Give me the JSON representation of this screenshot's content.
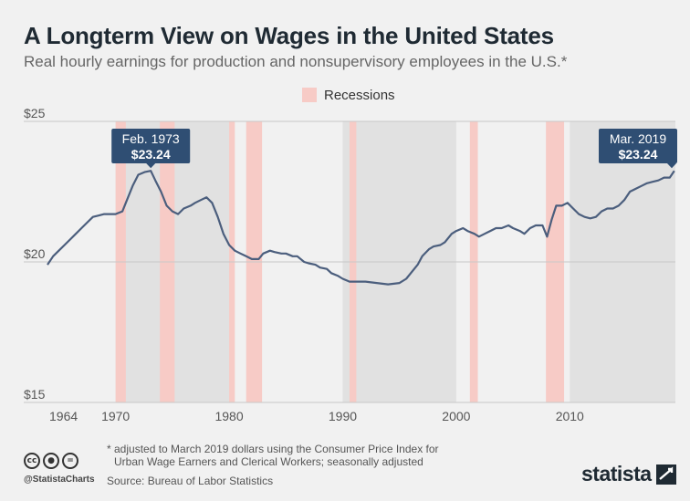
{
  "title": "A Longterm View on Wages in the United States",
  "subtitle": "Real hourly earnings for production and nonsupervisory employees in the U.S.*",
  "legend": {
    "recessions_label": "Recessions"
  },
  "footnote": {
    "line1": "* adjusted to March 2019 dollars using the Consumer Price Index for",
    "line2": "Urban Wage Earners and Clerical Workers; seasonally adjusted"
  },
  "source": "Source: Bureau of Labor Statistics",
  "handle": "@StatistaCharts",
  "brand": "statista",
  "icons": [
    "creative-commons-icon",
    "attribution-icon",
    "no-derivatives-icon"
  ],
  "colors": {
    "line": "#4b5e7d",
    "recession": "#f7cbc6",
    "decade_band": "#e1e1e1",
    "callout": "#2f4e73",
    "background": "#f1f1f1"
  },
  "chart_data": {
    "type": "line",
    "x_unit": "year",
    "xlim": [
      1964,
      2019.3
    ],
    "ylim": [
      15,
      25
    ],
    "y_ticks": [
      {
        "value": 25,
        "label": "$25"
      },
      {
        "value": 20,
        "label": "$20"
      },
      {
        "value": 15,
        "label": "$15"
      }
    ],
    "x_ticks": [
      {
        "value": 1964,
        "label": "1964"
      },
      {
        "value": 1970,
        "label": "1970"
      },
      {
        "value": 1980,
        "label": "1980"
      },
      {
        "value": 1990,
        "label": "1990"
      },
      {
        "value": 2000,
        "label": "2000"
      },
      {
        "value": 2010,
        "label": "2010"
      }
    ],
    "decade_bands": [
      [
        1970,
        1980
      ],
      [
        1990,
        2000
      ],
      [
        2010,
        2019.3
      ]
    ],
    "recessions": [
      [
        1970.0,
        1970.9
      ],
      [
        1973.9,
        1975.2
      ],
      [
        1980.0,
        1980.5
      ],
      [
        1981.5,
        1982.9
      ],
      [
        1990.6,
        1991.2
      ],
      [
        2001.2,
        2001.9
      ],
      [
        2007.9,
        2009.5
      ]
    ],
    "series": [
      {
        "points": [
          [
            1964.0,
            19.9
          ],
          [
            1964.5,
            20.2
          ],
          [
            1965.0,
            20.4
          ],
          [
            1965.5,
            20.6
          ],
          [
            1966.0,
            20.8
          ],
          [
            1966.5,
            21.0
          ],
          [
            1967.0,
            21.2
          ],
          [
            1967.5,
            21.4
          ],
          [
            1968.0,
            21.6
          ],
          [
            1968.5,
            21.65
          ],
          [
            1969.0,
            21.7
          ],
          [
            1969.5,
            21.7
          ],
          [
            1970.0,
            21.7
          ],
          [
            1970.6,
            21.8
          ],
          [
            1971.0,
            22.2
          ],
          [
            1971.5,
            22.7
          ],
          [
            1972.0,
            23.1
          ],
          [
            1972.6,
            23.2
          ],
          [
            1973.1,
            23.24
          ],
          [
            1973.5,
            22.9
          ],
          [
            1974.0,
            22.5
          ],
          [
            1974.5,
            22.0
          ],
          [
            1975.0,
            21.8
          ],
          [
            1975.5,
            21.7
          ],
          [
            1976.0,
            21.9
          ],
          [
            1976.6,
            22.0
          ],
          [
            1977.0,
            22.1
          ],
          [
            1977.5,
            22.2
          ],
          [
            1978.0,
            22.3
          ],
          [
            1978.5,
            22.1
          ],
          [
            1979.0,
            21.6
          ],
          [
            1979.5,
            21.0
          ],
          [
            1980.0,
            20.6
          ],
          [
            1980.5,
            20.4
          ],
          [
            1981.0,
            20.3
          ],
          [
            1981.5,
            20.2
          ],
          [
            1982.0,
            20.1
          ],
          [
            1982.6,
            20.1
          ],
          [
            1983.0,
            20.3
          ],
          [
            1983.6,
            20.4
          ],
          [
            1984.0,
            20.35
          ],
          [
            1984.6,
            20.3
          ],
          [
            1985.0,
            20.3
          ],
          [
            1985.6,
            20.2
          ],
          [
            1986.0,
            20.2
          ],
          [
            1986.6,
            20.0
          ],
          [
            1987.0,
            19.95
          ],
          [
            1987.6,
            19.9
          ],
          [
            1988.0,
            19.8
          ],
          [
            1988.6,
            19.75
          ],
          [
            1989.0,
            19.6
          ],
          [
            1989.6,
            19.5
          ],
          [
            1990.0,
            19.4
          ],
          [
            1990.6,
            19.3
          ],
          [
            1991.0,
            19.3
          ],
          [
            1992.0,
            19.3
          ],
          [
            1993.0,
            19.25
          ],
          [
            1994.0,
            19.2
          ],
          [
            1995.0,
            19.25
          ],
          [
            1995.6,
            19.4
          ],
          [
            1996.0,
            19.6
          ],
          [
            1996.6,
            19.9
          ],
          [
            1997.0,
            20.2
          ],
          [
            1997.6,
            20.45
          ],
          [
            1998.0,
            20.55
          ],
          [
            1998.6,
            20.6
          ],
          [
            1999.0,
            20.7
          ],
          [
            1999.6,
            21.0
          ],
          [
            2000.0,
            21.1
          ],
          [
            2000.6,
            21.2
          ],
          [
            2001.0,
            21.1
          ],
          [
            2001.6,
            21.0
          ],
          [
            2002.0,
            20.9
          ],
          [
            2002.5,
            21.0
          ],
          [
            2003.0,
            21.1
          ],
          [
            2003.5,
            21.2
          ],
          [
            2004.0,
            21.2
          ],
          [
            2004.6,
            21.3
          ],
          [
            2005.0,
            21.2
          ],
          [
            2005.6,
            21.1
          ],
          [
            2006.0,
            21.0
          ],
          [
            2006.5,
            21.2
          ],
          [
            2007.0,
            21.3
          ],
          [
            2007.6,
            21.3
          ],
          [
            2008.0,
            20.9
          ],
          [
            2008.4,
            21.5
          ],
          [
            2008.8,
            22.0
          ],
          [
            2009.3,
            22.0
          ],
          [
            2009.8,
            22.1
          ],
          [
            2010.3,
            21.9
          ],
          [
            2010.8,
            21.7
          ],
          [
            2011.3,
            21.6
          ],
          [
            2011.8,
            21.55
          ],
          [
            2012.3,
            21.6
          ],
          [
            2012.8,
            21.8
          ],
          [
            2013.3,
            21.9
          ],
          [
            2013.8,
            21.9
          ],
          [
            2014.3,
            22.0
          ],
          [
            2014.8,
            22.2
          ],
          [
            2015.3,
            22.5
          ],
          [
            2015.8,
            22.6
          ],
          [
            2016.3,
            22.7
          ],
          [
            2016.8,
            22.8
          ],
          [
            2017.3,
            22.85
          ],
          [
            2017.8,
            22.9
          ],
          [
            2018.3,
            23.0
          ],
          [
            2018.8,
            23.0
          ],
          [
            2019.2,
            23.24
          ]
        ]
      }
    ],
    "annotations": [
      {
        "date_label": "Feb. 1973",
        "value_label": "$23.24",
        "x": 1973.1,
        "y": 23.24
      },
      {
        "date_label": "Mar. 2019",
        "value_label": "$23.24",
        "x": 2019.2,
        "y": 23.24
      }
    ]
  }
}
